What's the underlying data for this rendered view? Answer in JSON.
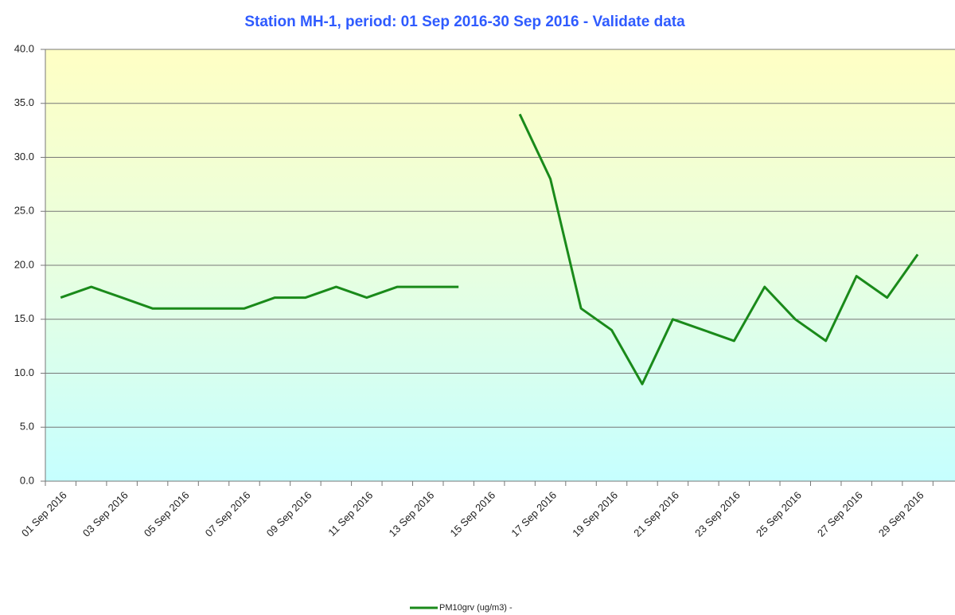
{
  "chart_data": {
    "type": "line",
    "title": "Station MH-1, period: 01 Sep 2016-30 Sep 2016 - Validate data",
    "categories": [
      "01 Sep 2016",
      null,
      "03 Sep 2016",
      null,
      "05 Sep 2016",
      null,
      "07 Sep 2016",
      null,
      "09 Sep 2016",
      null,
      "11 Sep 2016",
      null,
      "13 Sep 2016",
      null,
      "15 Sep 2016",
      null,
      "17 Sep 2016",
      null,
      "19 Sep 2016",
      null,
      "21 Sep 2016",
      null,
      "23 Sep 2016",
      null,
      "25 Sep 2016",
      null,
      "27 Sep 2016",
      null,
      "29 Sep 2016",
      null
    ],
    "series": [
      {
        "name": "PM10grv (ug/m3) -",
        "color": "#1a8a1a",
        "values": [
          17,
          18,
          17,
          16,
          16,
          16,
          16,
          17,
          17,
          18,
          17,
          18,
          18,
          18,
          null,
          34,
          28,
          16,
          14,
          9,
          15,
          14,
          13,
          18,
          15,
          13,
          19,
          17,
          21,
          null
        ]
      }
    ],
    "ylim": [
      0,
      40
    ],
    "yticks": [
      {
        "value": 0,
        "label": "0.0"
      },
      {
        "value": 5,
        "label": "5.0"
      },
      {
        "value": 10,
        "label": "10.0"
      },
      {
        "value": 15,
        "label": "15.0"
      },
      {
        "value": 20,
        "label": "20.0"
      },
      {
        "value": 25,
        "label": "25.0"
      },
      {
        "value": 30,
        "label": "30.0"
      },
      {
        "value": 35,
        "label": "35.0"
      },
      {
        "value": 40,
        "label": "40.0"
      }
    ],
    "grid": true
  }
}
